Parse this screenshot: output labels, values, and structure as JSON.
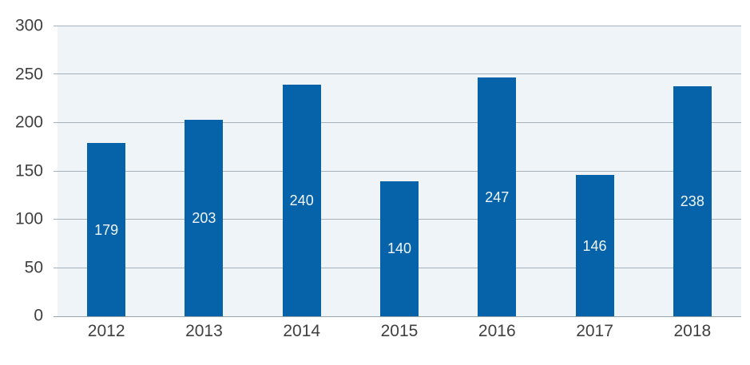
{
  "chart_data": {
    "type": "bar",
    "categories": [
      "2012",
      "2013",
      "2014",
      "2015",
      "2016",
      "2017",
      "2018"
    ],
    "values": [
      179,
      203,
      240,
      140,
      247,
      146,
      238
    ],
    "title": "",
    "xlabel": "",
    "ylabel": "",
    "ylim": [
      0,
      300
    ],
    "yticks": [
      0,
      50,
      100,
      150,
      200,
      250,
      300
    ],
    "grid": true,
    "legend": false,
    "data_labels": true,
    "data_label_position": "inside-center",
    "colors": {
      "bar": "#0663a9",
      "plot_background": "#eff4f9",
      "gridline": "#a7b1b9",
      "baseline": "#9aa4ac",
      "axis_text": "#404040",
      "data_label_text": "#f2f6fa"
    }
  }
}
